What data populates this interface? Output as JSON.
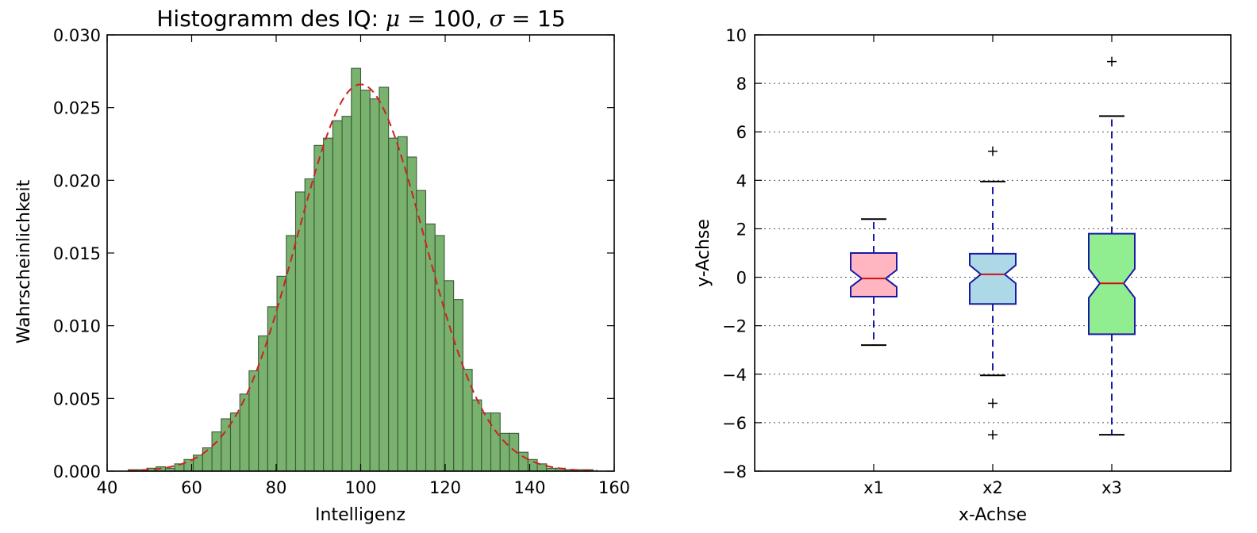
{
  "chart_data": [
    {
      "type": "bar",
      "subtype": "histogram",
      "title": "Histogramm des IQ: ",
      "title_math": {
        "mu_symbol": "μ",
        "mu_eq": " = 100, ",
        "sigma_symbol": "σ",
        "sigma_eq": " = 15"
      },
      "xlabel": "Intelligenz",
      "ylabel": "Wahrscheinlichkeit",
      "xlim": [
        40,
        160
      ],
      "ylim": [
        0,
        0.03
      ],
      "xticks": [
        "40",
        "60",
        "80",
        "100",
        "120",
        "140",
        "160"
      ],
      "yticks": [
        "0.000",
        "0.005",
        "0.010",
        "0.015",
        "0.020",
        "0.025",
        "0.030"
      ],
      "bin_edges": [
        45,
        47.2,
        49.4,
        51.6,
        53.8,
        56,
        58.2,
        60.4,
        62.6,
        64.8,
        67,
        69.2,
        71.4,
        73.6,
        75.8,
        78,
        80.2,
        82.4,
        84.6,
        86.8,
        89,
        91.2,
        93.4,
        95.6,
        97.8,
        100,
        102.2,
        104.4,
        106.6,
        108.8,
        111,
        113.2,
        115.4,
        117.6,
        119.8,
        122,
        124.2,
        126.4,
        128.6,
        130.8,
        133,
        135.2,
        137.4,
        139.6,
        141.8,
        144,
        146.2,
        148.4,
        150.6,
        152.8,
        155
      ],
      "values": [
        0.0001,
        0.0001,
        0.0002,
        0.0003,
        0.0002,
        0.0005,
        0.0008,
        0.0011,
        0.0016,
        0.0027,
        0.0036,
        0.004,
        0.0053,
        0.0069,
        0.0093,
        0.0113,
        0.0134,
        0.0162,
        0.0192,
        0.0201,
        0.0224,
        0.0229,
        0.0241,
        0.0244,
        0.0277,
        0.0262,
        0.0256,
        0.0264,
        0.0229,
        0.023,
        0.0216,
        0.0193,
        0.017,
        0.0162,
        0.0131,
        0.0118,
        0.007,
        0.0049,
        0.004,
        0.004,
        0.0026,
        0.0026,
        0.0013,
        0.0008,
        0.0005,
        0.0002,
        0.0002,
        0.0001,
        0.0001,
        0.0001
      ],
      "bar_color": "#6aaa5e",
      "fit_curve": {
        "style": "dashed",
        "color": "#cc2222",
        "mu": 100,
        "sigma": 15
      }
    },
    {
      "type": "boxplot",
      "notched": true,
      "xlabel": "x-Achse",
      "ylabel": "y-Achse",
      "ylim": [
        -8,
        10
      ],
      "yticks": [
        "−8",
        "−6",
        "−4",
        "−2",
        "0",
        "2",
        "4",
        "6",
        "8",
        "10"
      ],
      "grid": "horizontal dotted",
      "categories": [
        "x1",
        "x2",
        "x3"
      ],
      "boxes": [
        {
          "name": "x1",
          "whisker_low": -2.8,
          "q1": -0.8,
          "median": -0.05,
          "q3": 1.0,
          "whisker_high": 2.4,
          "notch_low": -0.4,
          "notch_high": 0.3,
          "fliers": [],
          "color": "#ffb6c1"
        },
        {
          "name": "x2",
          "whisker_low": -4.05,
          "q1": -1.1,
          "median": 0.12,
          "q3": 0.97,
          "whisker_high": 3.95,
          "notch_low": -0.25,
          "notch_high": 0.5,
          "fliers": [
            5.2,
            -5.2,
            -6.5
          ],
          "color": "#add8e6"
        },
        {
          "name": "x3",
          "whisker_low": -6.5,
          "q1": -2.35,
          "median": -0.25,
          "q3": 1.8,
          "whisker_high": 6.65,
          "notch_low": -0.85,
          "notch_high": 0.35,
          "fliers": [
            8.9
          ],
          "color": "#90ee90"
        }
      ]
    }
  ]
}
